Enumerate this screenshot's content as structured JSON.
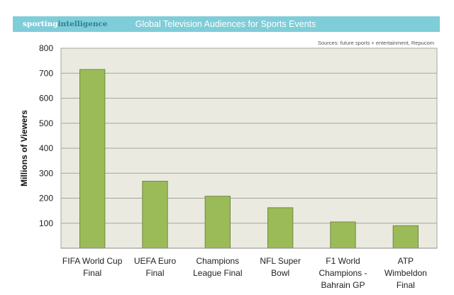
{
  "header": {
    "brand_part1": "sporting",
    "brand_part2": "intelligence"
  },
  "chart_data": {
    "type": "bar",
    "title": "Global Television Audiences for Sports Events",
    "source": "Sources: future sports + entertainment, Repucom",
    "xlabel": "",
    "ylabel": "Millions of Viewers",
    "ylim": [
      0,
      800
    ],
    "yticks": [
      100,
      200,
      300,
      400,
      500,
      600,
      700,
      800
    ],
    "categories": [
      [
        "FIFA World Cup",
        "Final"
      ],
      [
        "UEFA Euro",
        "Final"
      ],
      [
        "Champions",
        "League Final"
      ],
      [
        "NFL Super",
        "Bowl"
      ],
      [
        "F1 World",
        "Champions -",
        "Bahrain GP"
      ],
      [
        "ATP",
        "Wimbeldon",
        "Final"
      ]
    ],
    "values": [
      715,
      268,
      208,
      162,
      105,
      90
    ],
    "grid": true,
    "colors": {
      "bar": "#9bbb59",
      "bar_stroke": "#71893f",
      "plot_bg": "#eaeae0",
      "grid": "#a6a69e",
      "header": "#7fcdd8"
    }
  }
}
